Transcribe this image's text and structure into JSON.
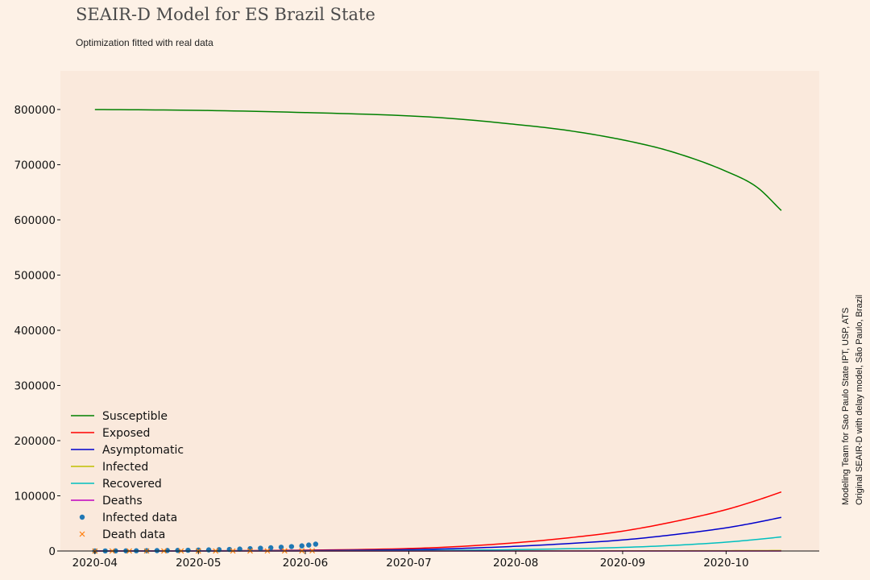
{
  "chart_data": {
    "type": "line",
    "title": "SEAIR-D Model for ES Brazil State",
    "subtitle": "Optimization fitted with real data",
    "xlabel": "",
    "ylabel": "",
    "x_range": [
      "2020-03-22",
      "2020-10-28"
    ],
    "ylim": [
      0,
      870000
    ],
    "x_ticks": [
      "2020-04",
      "2020-05",
      "2020-06",
      "2020-07",
      "2020-08",
      "2020-09",
      "2020-10"
    ],
    "y_ticks": [
      0,
      100000,
      200000,
      300000,
      400000,
      500000,
      600000,
      700000,
      800000
    ],
    "grid": false,
    "legend_position": "lower-left",
    "series": [
      {
        "name": "Susceptible",
        "kind": "line",
        "color": "#008000",
        "x": [
          "2020-04-01",
          "2020-05-01",
          "2020-06-01",
          "2020-07-01",
          "2020-07-15",
          "2020-08-01",
          "2020-08-15",
          "2020-09-01",
          "2020-09-15",
          "2020-10-01",
          "2020-10-10",
          "2020-10-17"
        ],
        "values": [
          800000,
          798500,
          794500,
          788500,
          783000,
          773000,
          763000,
          745000,
          724000,
          688000,
          659000,
          617000
        ]
      },
      {
        "name": "Exposed",
        "kind": "line",
        "color": "#ff0000",
        "x": [
          "2020-04-01",
          "2020-05-01",
          "2020-06-01",
          "2020-07-01",
          "2020-07-15",
          "2020-08-01",
          "2020-08-15",
          "2020-09-01",
          "2020-09-15",
          "2020-10-01",
          "2020-10-10",
          "2020-10-17"
        ],
        "values": [
          0,
          400,
          1500,
          4500,
          8000,
          15000,
          23000,
          36000,
          52000,
          75000,
          92000,
          107000
        ]
      },
      {
        "name": "Asymptomatic",
        "kind": "line",
        "color": "#0000cc",
        "x": [
          "2020-04-01",
          "2020-05-01",
          "2020-06-01",
          "2020-07-01",
          "2020-07-15",
          "2020-08-01",
          "2020-08-15",
          "2020-09-01",
          "2020-09-15",
          "2020-10-01",
          "2020-10-10",
          "2020-10-17"
        ],
        "values": [
          0,
          200,
          800,
          2500,
          4500,
          8500,
          13000,
          20000,
          29000,
          42000,
          52000,
          61000
        ]
      },
      {
        "name": "Infected",
        "kind": "line",
        "color": "#bfbf00",
        "x": [
          "2020-04-01",
          "2020-06-01",
          "2020-08-01",
          "2020-09-01",
          "2020-10-01",
          "2020-10-17"
        ],
        "values": [
          0,
          30,
          150,
          300,
          600,
          900
        ]
      },
      {
        "name": "Recovered",
        "kind": "line",
        "color": "#00bfbf",
        "x": [
          "2020-04-01",
          "2020-05-01",
          "2020-06-01",
          "2020-07-01",
          "2020-08-01",
          "2020-09-01",
          "2020-09-15",
          "2020-10-01",
          "2020-10-10",
          "2020-10-17"
        ],
        "values": [
          0,
          50,
          300,
          900,
          2500,
          6500,
          10000,
          16000,
          21000,
          25500
        ]
      },
      {
        "name": "Deaths",
        "kind": "line",
        "color": "#bf00bf",
        "x": [
          "2020-04-01",
          "2020-06-01",
          "2020-08-01",
          "2020-10-01",
          "2020-10-17"
        ],
        "values": [
          0,
          5,
          20,
          60,
          90
        ]
      },
      {
        "name": "Infected data",
        "kind": "scatter",
        "marker": "circle",
        "color": "#1f77b4",
        "x": [
          "2020-04-01",
          "2020-04-04",
          "2020-04-07",
          "2020-04-10",
          "2020-04-13",
          "2020-04-16",
          "2020-04-19",
          "2020-04-22",
          "2020-04-25",
          "2020-04-28",
          "2020-05-01",
          "2020-05-04",
          "2020-05-07",
          "2020-05-10",
          "2020-05-13",
          "2020-05-16",
          "2020-05-19",
          "2020-05-22",
          "2020-05-25",
          "2020-05-28",
          "2020-05-31",
          "2020-06-02",
          "2020-06-04"
        ],
        "values": [
          50,
          120,
          200,
          300,
          420,
          560,
          720,
          900,
          1100,
          1350,
          1650,
          2000,
          2400,
          2900,
          3500,
          4200,
          5000,
          5900,
          6900,
          8000,
          9300,
          10800,
          12400
        ]
      },
      {
        "name": "Death data",
        "kind": "scatter",
        "marker": "x",
        "color": "#ff7f0e",
        "x": [
          "2020-04-01",
          "2020-04-06",
          "2020-04-11",
          "2020-04-16",
          "2020-04-21",
          "2020-04-26",
          "2020-05-01",
          "2020-05-06",
          "2020-05-11",
          "2020-05-16",
          "2020-05-21",
          "2020-05-26",
          "2020-05-31",
          "2020-06-03"
        ],
        "values": [
          1,
          3,
          6,
          10,
          20,
          35,
          55,
          80,
          110,
          150,
          200,
          260,
          320,
          380
        ]
      }
    ]
  },
  "credits": {
    "line1": "Original SEAIR-D with delay model, São Paulo, Brazil",
    "line2": "Modeling Team for Sao Paulo State IPT, USP, ATS"
  }
}
